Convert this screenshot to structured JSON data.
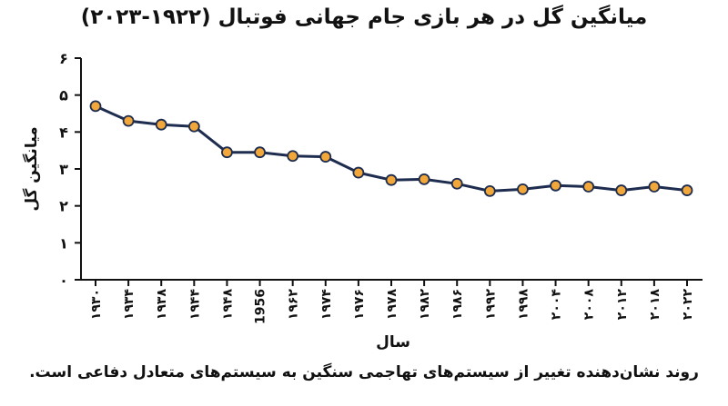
{
  "chart_data": {
    "type": "line",
    "title": "میانگین گل در هر بازی جام جهانی فوتبال (۱۹۲۲-۲۰۲۳)",
    "xlabel": "سال",
    "ylabel": "میانگین گل",
    "caption": "روند نشان‌دهنده تغییر از سیستم‌های تهاجمی سنگین به سیستم‌های متعادل دفاعی است.",
    "categories": [
      "۱۹۳۰",
      "۱۹۳۴",
      "۱۹۳۸",
      "۱۹۴۴",
      "۱۹۴۸",
      "1956",
      "۱۹۶۲",
      "۱۹۷۴",
      "۱۹۷۶",
      "۱۹۷۸",
      "۱۹۸۲",
      "۱۹۸۶",
      "۱۹۹۲",
      "۱۹۹۸",
      "۲۰۰۴",
      "۲۰۰۸",
      "۲۰۱۲",
      "۲۰۱۸",
      "۲۰۲۲"
    ],
    "series": [
      {
        "values": [
          4.7,
          4.3,
          4.2,
          4.15,
          3.45,
          3.45,
          3.35,
          3.33,
          2.9,
          2.7,
          2.72,
          2.6,
          2.4,
          2.45,
          2.55,
          2.52,
          2.42,
          2.52,
          2.42
        ]
      }
    ],
    "ylim": [
      0,
      6
    ],
    "yticks": [
      "۰",
      "۱",
      "۲",
      "۳",
      "۴",
      "۵",
      "۶"
    ],
    "grid": false,
    "colors": {
      "line": "#1e2d4f",
      "marker": "#f2a73b"
    }
  }
}
